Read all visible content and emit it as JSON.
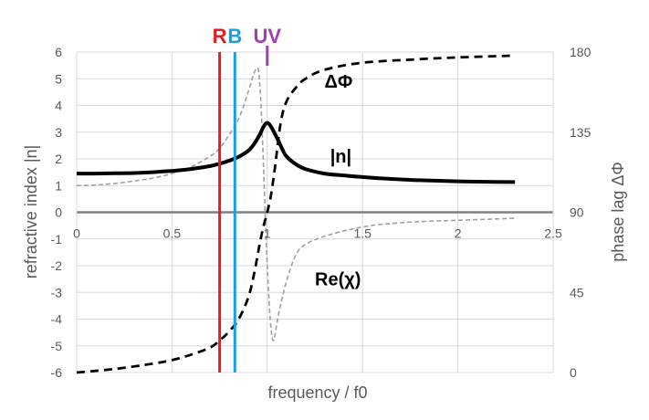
{
  "chart_data": {
    "type": "line",
    "xlabel": "frequency / f0",
    "ylabel_left": "refractive index   |n|",
    "ylabel_right": "phase  lag  ΔΦ",
    "xlim": [
      0,
      2.5
    ],
    "ylim_left": [
      -6,
      6
    ],
    "ylim_right": [
      0,
      180
    ],
    "x_ticks": [
      "0",
      "0.5",
      "1",
      "1.5",
      "2",
      "2.5"
    ],
    "y_ticks_left": [
      "-6",
      "-5",
      "-4",
      "-3",
      "-2",
      "-1",
      "0",
      "1",
      "2",
      "3",
      "4",
      "5",
      "6"
    ],
    "y_ticks_right": [
      "0",
      "45",
      "90",
      "135",
      "180"
    ],
    "grid": true,
    "markers": [
      {
        "label": "R",
        "x": 0.75,
        "color": "#e02020"
      },
      {
        "label": "B",
        "x": 0.83,
        "color": "#1aa0e0"
      },
      {
        "label": "UV",
        "x": 1.0,
        "color": "#a040b0"
      }
    ],
    "series": [
      {
        "name": "|n|",
        "axis": "left",
        "style": "solid-thick",
        "color": "#000000",
        "x": [
          0,
          0.1,
          0.2,
          0.3,
          0.4,
          0.5,
          0.6,
          0.7,
          0.75,
          0.8,
          0.85,
          0.9,
          0.93,
          0.96,
          0.98,
          1.0,
          1.02,
          1.05,
          1.08,
          1.1,
          1.15,
          1.2,
          1.3,
          1.4,
          1.5,
          1.6,
          1.8,
          2.0,
          2.2,
          2.3
        ],
        "values": [
          1.45,
          1.45,
          1.46,
          1.47,
          1.5,
          1.55,
          1.62,
          1.73,
          1.82,
          1.93,
          2.08,
          2.3,
          2.55,
          2.9,
          3.2,
          3.35,
          3.2,
          2.8,
          2.35,
          2.1,
          1.8,
          1.62,
          1.45,
          1.38,
          1.32,
          1.27,
          1.2,
          1.16,
          1.14,
          1.13
        ]
      },
      {
        "name": "ΔΦ",
        "axis": "right",
        "style": "dashed",
        "color": "#000000",
        "x": [
          0,
          0.2,
          0.4,
          0.5,
          0.6,
          0.7,
          0.75,
          0.8,
          0.85,
          0.9,
          0.93,
          0.96,
          0.98,
          1.0,
          1.02,
          1.04,
          1.07,
          1.1,
          1.15,
          1.2,
          1.3,
          1.5,
          1.8,
          2.0,
          2.3
        ],
        "values": [
          0,
          2,
          5,
          7,
          10,
          14,
          18,
          23,
          30,
          42,
          55,
          72,
          82,
          90,
          100,
          115,
          140,
          152,
          160,
          165,
          170,
          174,
          176,
          177,
          178
        ]
      },
      {
        "name": "Re(χ)",
        "axis": "left",
        "style": "dashed-thin",
        "color": "#a0a0a0",
        "x": [
          0,
          0.1,
          0.2,
          0.3,
          0.4,
          0.5,
          0.6,
          0.7,
          0.75,
          0.8,
          0.85,
          0.9,
          0.93,
          0.95,
          0.96,
          0.97,
          0.98,
          0.99,
          1.0,
          1.01,
          1.02,
          1.03,
          1.04,
          1.06,
          1.1,
          1.15,
          1.2,
          1.3,
          1.4,
          1.5,
          1.6,
          1.8,
          2.0,
          2.2,
          2.3
        ],
        "values": [
          1.0,
          1.02,
          1.08,
          1.17,
          1.28,
          1.45,
          1.7,
          2.1,
          2.4,
          2.9,
          3.5,
          4.5,
          5.2,
          5.4,
          4.9,
          3.6,
          1.8,
          -0.2,
          -2.0,
          -3.4,
          -4.4,
          -4.8,
          -4.6,
          -3.8,
          -2.6,
          -1.6,
          -1.2,
          -0.9,
          -0.7,
          -0.55,
          -0.45,
          -0.35,
          -0.3,
          -0.25,
          -0.22
        ]
      }
    ],
    "annotations": [
      {
        "text": "ΔΦ",
        "x": 1.3,
        "y": 4.9
      },
      {
        "text": "|n|",
        "x": 1.33,
        "y": 2.1
      },
      {
        "text": "Re(χ)",
        "x": 1.25,
        "y": -2.5
      }
    ]
  }
}
